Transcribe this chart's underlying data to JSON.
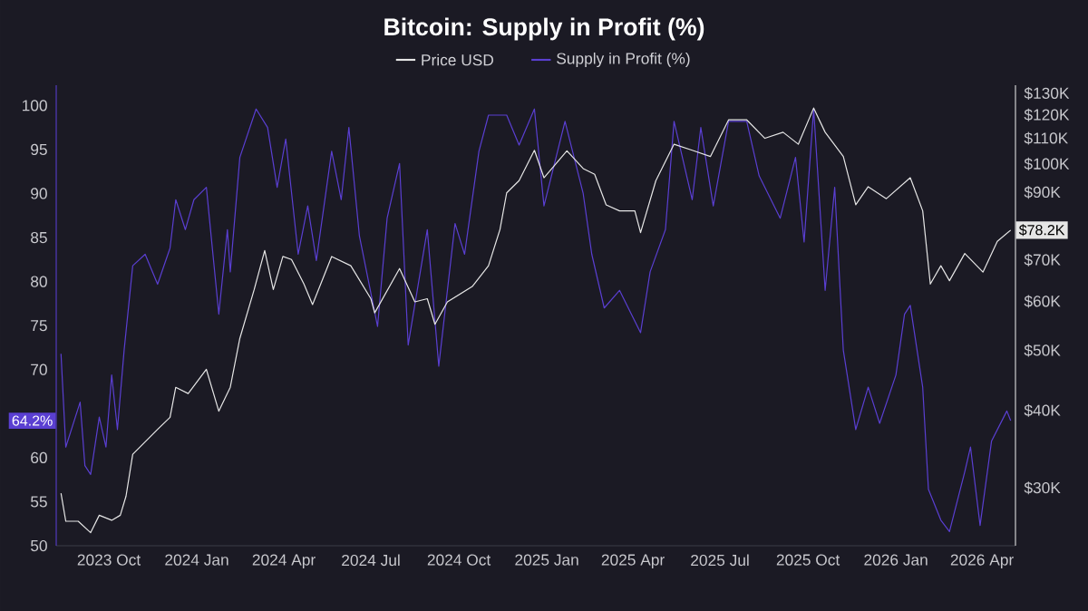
{
  "chart_data": {
    "type": "line",
    "title": "Bitcoin: Supply in Profit (%)",
    "legend": "top",
    "xlim": [
      "2023-08-07",
      "2026-05-06"
    ],
    "xticks": [
      {
        "value": "2023-10-01",
        "label": "2023 Oct"
      },
      {
        "value": "2024-01-01",
        "label": "2024 Jan"
      },
      {
        "value": "2024-04-01",
        "label": "2024 Apr"
      },
      {
        "value": "2024-07-01",
        "label": "2024 Jul"
      },
      {
        "value": "2024-10-01",
        "label": "2024 Oct"
      },
      {
        "value": "2025-01-01",
        "label": "2025 Jan"
      },
      {
        "value": "2025-04-01",
        "label": "2025 Apr"
      },
      {
        "value": "2025-07-01",
        "label": "2025 Jul"
      },
      {
        "value": "2025-10-01",
        "label": "2025 Oct"
      },
      {
        "value": "2026-01-01",
        "label": "2026 Jan"
      },
      {
        "value": "2026-04-01",
        "label": "2026 Apr"
      }
    ],
    "ylim": [
      50,
      102.3
    ],
    "yticks": [
      50,
      55,
      60,
      70,
      75,
      80,
      85,
      90,
      95,
      100
    ],
    "y2lim": [
      24200,
      134000
    ],
    "log": "y2",
    "y2ticks": [
      {
        "value": 30000,
        "label": "$30K"
      },
      {
        "value": 40000,
        "label": "$40K"
      },
      {
        "value": 50000,
        "label": "$50K"
      },
      {
        "value": 60000,
        "label": "$60K"
      },
      {
        "value": 70000,
        "label": "$70K"
      },
      {
        "value": 90000,
        "label": "$90K"
      },
      {
        "value": 100000,
        "label": "$100K"
      },
      {
        "value": 110000,
        "label": "$110K"
      },
      {
        "value": 120000,
        "label": "$120K"
      },
      {
        "value": 130000,
        "label": "$130K"
      }
    ],
    "annotations": [
      "64.2%",
      "$78.2K"
    ],
    "series": [
      {
        "name": "Price USD",
        "color": "#e6e6e6",
        "axis": "y2",
        "x": [
          "2023-08-12",
          "2023-08-17",
          "2023-08-30",
          "2023-09-12",
          "2023-09-21",
          "2023-10-04",
          "2023-10-13",
          "2023-10-19",
          "2023-10-26",
          "2023-11-08",
          "2023-11-21",
          "2023-12-04",
          "2023-12-10",
          "2023-12-23",
          "2024-01-11",
          "2024-01-24",
          "2024-02-05",
          "2024-02-15",
          "2024-03-01",
          "2024-03-12",
          "2024-03-21",
          "2024-03-31",
          "2024-04-09",
          "2024-04-22",
          "2024-05-01",
          "2024-05-21",
          "2024-06-10",
          "2024-07-01",
          "2024-07-05",
          "2024-07-31",
          "2024-08-16",
          "2024-08-29",
          "2024-09-06",
          "2024-09-19",
          "2024-10-15",
          "2024-11-01",
          "2024-11-13",
          "2024-11-20",
          "2024-12-03",
          "2024-12-19",
          "2024-12-29",
          "2025-01-22",
          "2025-02-08",
          "2025-02-20",
          "2025-03-04",
          "2025-03-18",
          "2025-04-03",
          "2025-04-09",
          "2025-04-25",
          "2025-05-14",
          "2025-06-02",
          "2025-06-21",
          "2025-07-10",
          "2025-07-29",
          "2025-08-17",
          "2025-09-05",
          "2025-09-21",
          "2025-10-07",
          "2025-10-19",
          "2025-11-07",
          "2025-11-20",
          "2025-12-03",
          "2025-12-22",
          "2026-01-16",
          "2026-01-29",
          "2026-02-06",
          "2026-02-17",
          "2026-02-26",
          "2026-03-14",
          "2026-04-02",
          "2026-04-17",
          "2026-05-01"
        ],
        "values": [
          29400,
          26500,
          26500,
          25400,
          27100,
          26600,
          27100,
          29100,
          34000,
          35600,
          37300,
          39000,
          43600,
          42600,
          46600,
          39900,
          43600,
          52300,
          62700,
          72500,
          62700,
          70900,
          70100,
          64000,
          59300,
          70900,
          68500,
          60600,
          57500,
          67800,
          59900,
          60600,
          55100,
          59900,
          63400,
          68500,
          78400,
          89800,
          94000,
          105200,
          95000,
          105000,
          98300,
          96200,
          85900,
          84000,
          84000,
          77500,
          94000,
          107600,
          105200,
          102800,
          117800,
          117800,
          110000,
          112500,
          107600,
          123100,
          112500,
          102800,
          85900,
          91900,
          87900,
          95000,
          84000,
          64000,
          68500,
          64800,
          71700,
          66900,
          75000,
          78200
        ]
      },
      {
        "name": "Supply in Profit (%)",
        "color": "#5a3fd1",
        "x": [
          "2023-08-12",
          "2023-08-17",
          "2023-08-27",
          "2023-09-01",
          "2023-09-06",
          "2023-09-12",
          "2023-09-21",
          "2023-09-28",
          "2023-10-04",
          "2023-10-10",
          "2023-10-17",
          "2023-10-26",
          "2023-11-08",
          "2023-11-21",
          "2023-12-04",
          "2023-12-10",
          "2023-12-20",
          "2023-12-29",
          "2024-01-11",
          "2024-01-24",
          "2024-02-02",
          "2024-02-05",
          "2024-02-15",
          "2024-03-03",
          "2024-03-15",
          "2024-03-25",
          "2024-04-03",
          "2024-04-16",
          "2024-04-26",
          "2024-05-05",
          "2024-05-21",
          "2024-05-31",
          "2024-06-08",
          "2024-06-19",
          "2024-07-08",
          "2024-07-18",
          "2024-07-31",
          "2024-08-09",
          "2024-08-29",
          "2024-09-10",
          "2024-09-27",
          "2024-10-07",
          "2024-10-22",
          "2024-11-01",
          "2024-11-20",
          "2024-12-03",
          "2024-12-19",
          "2024-12-29",
          "2025-01-20",
          "2025-02-08",
          "2025-02-17",
          "2025-03-02",
          "2025-03-18",
          "2025-04-09",
          "2025-04-19",
          "2025-05-05",
          "2025-05-14",
          "2025-06-02",
          "2025-06-11",
          "2025-06-24",
          "2025-07-10",
          "2025-07-29",
          "2025-08-11",
          "2025-09-02",
          "2025-09-18",
          "2025-09-27",
          "2025-10-07",
          "2025-10-19",
          "2025-10-29",
          "2025-11-07",
          "2025-11-20",
          "2025-12-03",
          "2025-12-15",
          "2026-01-01",
          "2026-01-10",
          "2026-01-16",
          "2026-01-29",
          "2026-02-04",
          "2026-02-17",
          "2026-02-26",
          "2026-03-14",
          "2026-03-20",
          "2026-03-30",
          "2026-04-11",
          "2026-04-27",
          "2026-05-01"
        ],
        "values": [
          71.8,
          61.2,
          64.6,
          66.3,
          59.1,
          58.1,
          64.6,
          61.2,
          69.4,
          63.2,
          72.2,
          81.8,
          83.1,
          79.7,
          83.8,
          89.3,
          85.9,
          89.3,
          90.7,
          76.3,
          85.9,
          81.1,
          94.1,
          99.6,
          97.5,
          90.7,
          96.2,
          83.1,
          88.6,
          82.4,
          94.8,
          89.3,
          97.5,
          85.2,
          74.9,
          87.2,
          93.4,
          72.8,
          85.9,
          70.4,
          86.6,
          83.1,
          94.8,
          98.9,
          98.9,
          95.5,
          99.6,
          88.6,
          98.2,
          90.0,
          83.1,
          77.0,
          79.0,
          74.2,
          81.1,
          85.9,
          98.2,
          89.3,
          97.5,
          88.6,
          98.2,
          98.2,
          92.0,
          87.2,
          94.1,
          84.5,
          99.6,
          79.0,
          90.7,
          72.2,
          63.2,
          68.0,
          63.9,
          69.4,
          76.3,
          77.3,
          68.0,
          56.4,
          52.9,
          51.6,
          58.4,
          61.2,
          52.3,
          61.9,
          65.3,
          64.2
        ]
      }
    ]
  }
}
